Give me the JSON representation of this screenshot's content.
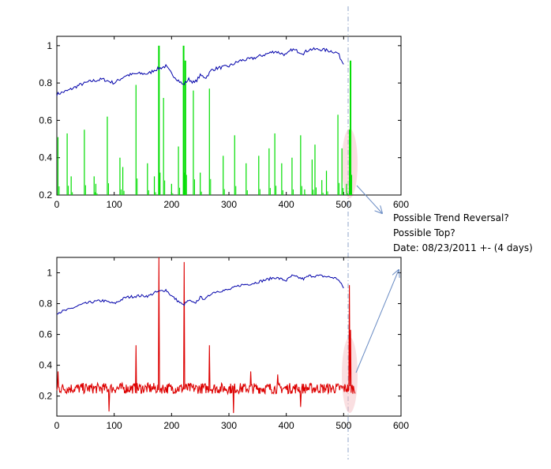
{
  "annotation": {
    "lines": [
      "Possible Trend Reversal?",
      "Possible Top?",
      "Date: 08/23/2011 +- (4 days)"
    ]
  },
  "colors": {
    "price": "#0000aa",
    "top_signal": "#00dd00",
    "bottom_signal": "#dd0000",
    "highlight": "#f4b8bd",
    "arrow": "#6a8cc4",
    "vline": "#8fa6c8"
  },
  "chart_data": [
    {
      "type": "line",
      "xlim": [
        0,
        600
      ],
      "ylim": [
        0.2,
        1.05
      ],
      "x_ticks": [
        0,
        100,
        200,
        300,
        400,
        500,
        600
      ],
      "y_ticks": [
        0.2,
        0.4,
        0.6,
        0.8,
        1
      ],
      "series": [
        {
          "role": "price",
          "style": "line",
          "x": [
            0,
            20,
            40,
            60,
            80,
            100,
            120,
            140,
            160,
            170,
            180,
            190,
            200,
            210,
            220,
            230,
            240,
            250,
            260,
            270,
            280,
            300,
            320,
            340,
            360,
            380,
            400,
            410,
            420,
            430,
            440,
            460,
            480,
            490,
            500
          ],
          "values": [
            0.74,
            0.76,
            0.79,
            0.81,
            0.82,
            0.8,
            0.84,
            0.85,
            0.85,
            0.87,
            0.88,
            0.89,
            0.85,
            0.82,
            0.79,
            0.82,
            0.8,
            0.84,
            0.83,
            0.87,
            0.88,
            0.89,
            0.92,
            0.93,
            0.95,
            0.97,
            0.95,
            0.98,
            0.97,
            0.96,
            0.98,
            0.98,
            0.97,
            0.96,
            0.9
          ]
        },
        {
          "role": "signal",
          "style": "spikes",
          "x": [
            2,
            18,
            25,
            48,
            65,
            68,
            88,
            110,
            115,
            138,
            158,
            170,
            178,
            186,
            200,
            212,
            221,
            224,
            238,
            250,
            266,
            290,
            310,
            330,
            352,
            370,
            380,
            392,
            410,
            425,
            432,
            445,
            450,
            462,
            470,
            490,
            497,
            505,
            510,
            512
          ],
          "values": [
            0.51,
            0.53,
            0.3,
            0.55,
            0.3,
            0.26,
            0.62,
            0.4,
            0.35,
            0.79,
            0.37,
            0.3,
            1.0,
            0.72,
            0.26,
            0.46,
            1.0,
            0.92,
            0.76,
            0.32,
            0.77,
            0.41,
            0.52,
            0.37,
            0.41,
            0.45,
            0.53,
            0.37,
            0.4,
            0.52,
            0.23,
            0.39,
            0.47,
            0.28,
            0.33,
            0.63,
            0.45,
            0.26,
            0.55,
            0.92
          ]
        }
      ]
    },
    {
      "type": "line",
      "xlim": [
        0,
        600
      ],
      "ylim": [
        0.07,
        1.1
      ],
      "x_ticks": [
        0,
        100,
        200,
        300,
        400,
        500,
        600
      ],
      "y_ticks": [
        0.2,
        0.4,
        0.6,
        0.8,
        1
      ],
      "series": [
        {
          "role": "price",
          "style": "line",
          "x": [
            0,
            20,
            40,
            60,
            80,
            100,
            120,
            140,
            160,
            170,
            180,
            190,
            200,
            210,
            220,
            230,
            240,
            250,
            260,
            270,
            280,
            300,
            320,
            340,
            360,
            380,
            400,
            410,
            420,
            430,
            440,
            460,
            480,
            490,
            500
          ],
          "values": [
            0.74,
            0.76,
            0.79,
            0.81,
            0.82,
            0.8,
            0.84,
            0.85,
            0.85,
            0.87,
            0.88,
            0.89,
            0.85,
            0.82,
            0.79,
            0.82,
            0.8,
            0.84,
            0.83,
            0.87,
            0.88,
            0.89,
            0.92,
            0.93,
            0.95,
            0.97,
            0.95,
            0.98,
            0.97,
            0.96,
            0.98,
            0.98,
            0.97,
            0.96,
            0.9
          ]
        },
        {
          "role": "indicator",
          "style": "noisy",
          "baseline": 0.25,
          "x_range": [
            0,
            520
          ],
          "spikes": [
            {
              "x": 2,
              "y": 0.36
            },
            {
              "x": 91,
              "y": 0.1
            },
            {
              "x": 138,
              "y": 0.53
            },
            {
              "x": 178,
              "y": 1.1
            },
            {
              "x": 222,
              "y": 1.07
            },
            {
              "x": 266,
              "y": 0.53
            },
            {
              "x": 308,
              "y": 0.09
            },
            {
              "x": 338,
              "y": 0.36
            },
            {
              "x": 385,
              "y": 0.34
            },
            {
              "x": 425,
              "y": 0.13
            },
            {
              "x": 510,
              "y": 0.92
            },
            {
              "x": 512,
              "y": 0.63
            }
          ]
        }
      ]
    }
  ]
}
